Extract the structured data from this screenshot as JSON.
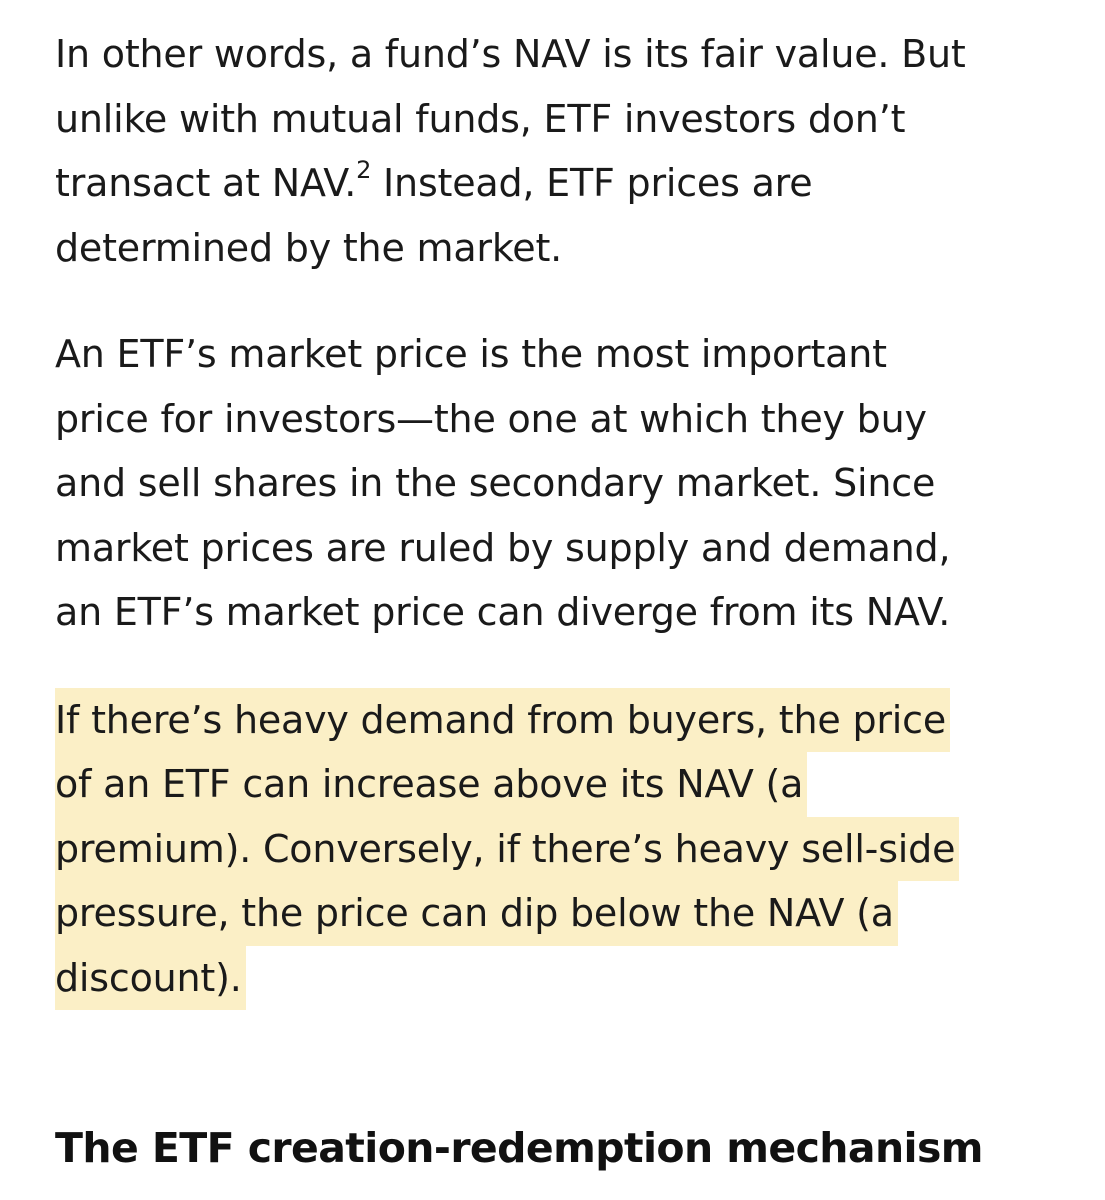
{
  "paragraphs": [
    {
      "lines": [
        "In other words, a fund’s NAV is its fair value. But",
        "unlike with mutual funds, ETF investors don’t",
        "transact at NAV.",
        "determined by the market."
      ],
      "footnote_ref": "2",
      "line3_after_footnote": " Instead, ETF prices are"
    },
    {
      "lines": [
        "An ETF’s market price is the most important",
        "price for investors—the one at which they buy",
        "and sell shares in the secondary market. Since",
        "market prices are ruled by supply and demand,",
        "an ETF’s market price can diverge from its NAV."
      ]
    },
    {
      "highlighted": true,
      "lines": [
        "If there’s heavy demand from buyers, the price",
        "of an ETF can increase above its NAV (a",
        "premium). Conversely, if there’s heavy sell-side",
        "pressure, the price can dip below the NAV (a",
        "discount)."
      ]
    }
  ],
  "heading": "The ETF creation-redemption mechanism",
  "colors": {
    "text": "#1a1a1a",
    "highlight": "#fbefc6",
    "background": "#ffffff"
  }
}
